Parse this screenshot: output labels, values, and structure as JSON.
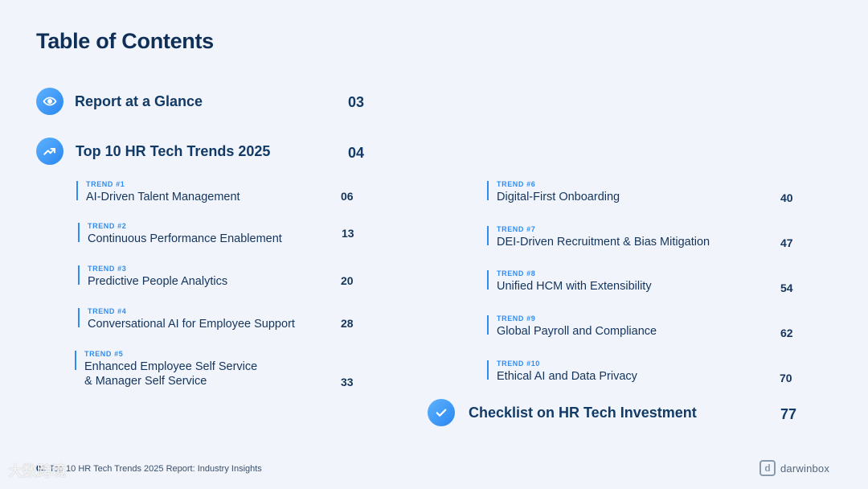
{
  "title": "Table of Contents",
  "sections": {
    "glance": {
      "label": "Report at a Glance",
      "page": "03",
      "icon": "eye-icon"
    },
    "trends": {
      "label": "Top 10 HR Tech Trends 2025",
      "page": "04",
      "icon": "trend-up-icon"
    },
    "checklist": {
      "label": "Checklist on HR Tech Investment",
      "page": "77",
      "icon": "check-icon"
    }
  },
  "trends_left": [
    {
      "tag": "TREND  #1",
      "name": "AI-Driven Talent Management",
      "page": "06"
    },
    {
      "tag": "TREND  #2",
      "name": "Continuous Performance Enablement",
      "page": "13"
    },
    {
      "tag": "TREND  #3",
      "name": "Predictive People Analytics",
      "page": "20"
    },
    {
      "tag": "TREND  #4",
      "name": "Conversational AI for Employee Support",
      "page": "28"
    },
    {
      "tag": "TREND  #5",
      "name": "Enhanced Employee Self Service",
      "name2": "& Manager Self Service",
      "page": "33"
    }
  ],
  "trends_right": [
    {
      "tag": "TREND  #6",
      "name": "Digital-First Onboarding",
      "page": "40"
    },
    {
      "tag": "TREND  #7",
      "name": "DEI-Driven Recruitment & Bias Mitigation",
      "page": "47"
    },
    {
      "tag": "TREND  #8",
      "name": "Unified HCM with Extensibility",
      "page": "54"
    },
    {
      "tag": "TREND  #9",
      "name": "Global Payroll and Compliance",
      "page": "62"
    },
    {
      "tag": "TREND  #10",
      "name": "Ethical AI and Data Privacy",
      "page": "70"
    }
  ],
  "footer": {
    "page_number": "02",
    "text": "Top 10 HR Tech Trends 2025 Report: Industry Insights"
  },
  "logo": {
    "text": "darwinbox",
    "mark": "d"
  },
  "watermark": "大数跨境",
  "colors": {
    "accent": "#2f8cf0",
    "heading": "#0f2f57",
    "background": "#f1f5fb"
  }
}
